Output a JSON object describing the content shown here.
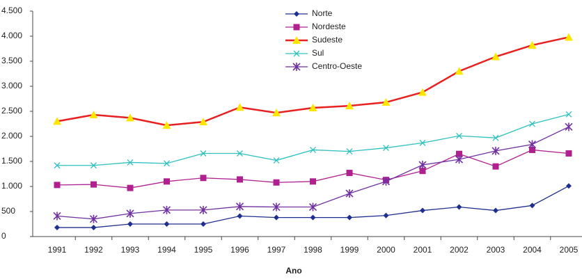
{
  "chart_data": {
    "type": "line",
    "x_label": "Ano",
    "categories": [
      "1991",
      "1992",
      "1993",
      "1994",
      "1995",
      "1996",
      "1997",
      "1998",
      "1999",
      "2000",
      "2001",
      "2002",
      "2003",
      "2004",
      "2005"
    ],
    "series": [
      {
        "name": "Norte",
        "color": "#1f2f8f",
        "marker": "diamond",
        "marker_color": "#1f2f8f",
        "values": [
          180,
          180,
          250,
          250,
          250,
          410,
          380,
          380,
          380,
          420,
          520,
          590,
          520,
          620,
          1010
        ]
      },
      {
        "name": "Nordeste",
        "color": "#b0208f",
        "marker": "square",
        "marker_color": "#b0208f",
        "values": [
          1030,
          1040,
          970,
          1100,
          1170,
          1140,
          1080,
          1100,
          1270,
          1130,
          1310,
          1650,
          1400,
          1730,
          1660
        ]
      },
      {
        "name": "Sudeste",
        "color": "#e82020",
        "marker": "triangle",
        "marker_color": "#ffe600",
        "values": [
          2300,
          2430,
          2370,
          2220,
          2290,
          2580,
          2470,
          2570,
          2610,
          2680,
          2880,
          3300,
          3590,
          3820,
          3980
        ]
      },
      {
        "name": "Sul",
        "color": "#30c0c0",
        "marker": "x",
        "marker_color": "#30c0c0",
        "values": [
          1420,
          1420,
          1480,
          1460,
          1660,
          1660,
          1520,
          1730,
          1700,
          1770,
          1870,
          2010,
          1970,
          2250,
          2440
        ]
      },
      {
        "name": "Centro-Oeste",
        "color": "#7030a0",
        "marker": "star",
        "marker_color": "#7030a0",
        "values": [
          410,
          350,
          460,
          530,
          530,
          600,
          590,
          590,
          860,
          1100,
          1430,
          1540,
          1710,
          1840,
          2190
        ]
      }
    ],
    "ylim": [
      0,
      4500
    ],
    "yticks": [
      0,
      {
        "value": 500,
        "label": "500"
      },
      {
        "value": 1000,
        "label": "1.000"
      },
      {
        "value": 1500,
        "label": "1.500"
      },
      {
        "value": 2000,
        "label": "2.000"
      },
      {
        "value": 2500,
        "label": "2.500"
      },
      {
        "value": 3000,
        "label": "3.000"
      },
      {
        "value": 3500,
        "label": "3.500"
      },
      {
        "value": 4000,
        "label": "4.000"
      },
      {
        "value": 4500,
        "label": "4.500"
      }
    ],
    "grid": false,
    "legend": "top"
  }
}
